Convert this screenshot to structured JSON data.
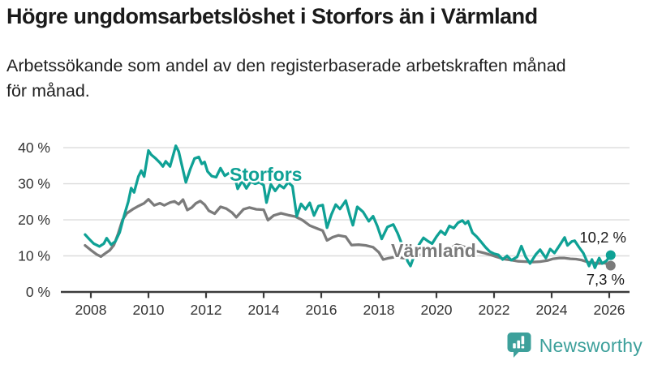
{
  "header": {
    "title": "Högre ungdomsarbetslöshet i Storfors än i Värmland",
    "subtitle_lines": [
      "Arbetssökande som andel av den registerbaserade arbetskraften månad",
      "för månad."
    ]
  },
  "branding": {
    "logo_text": "Newsworthy",
    "logo_color": "#3da09b"
  },
  "chart_data": {
    "type": "line",
    "title": "Högre ungdomsarbetslöshet i Storfors än i Värmland",
    "xlabel": "",
    "ylabel": "Arbetssökande som andel av den registerbaserade arbetskraften",
    "grid": true,
    "xlim": [
      2007.6,
      2026.6
    ],
    "ylim": [
      0,
      44
    ],
    "x_tick_values": [
      2008,
      2010,
      2012,
      2014,
      2016,
      2018,
      2020,
      2022,
      2024,
      2026
    ],
    "x_tick_labels": [
      "2008",
      "2010",
      "2012",
      "2014",
      "2016",
      "2018",
      "2020",
      "2022",
      "2024",
      "2026"
    ],
    "y_tick_values": [
      0,
      10,
      20,
      30,
      40
    ],
    "y_tick_labels": [
      "0 %",
      "10 %",
      "20 %",
      "30 %",
      "40 %"
    ],
    "colors": {
      "storfors": "#0fa195",
      "varmland": "#7b7b7b",
      "axis": "#3b3b3b",
      "gridline": "#dcdcdc",
      "end_label_text": "#1a1a1a"
    },
    "series": [
      {
        "name": "Värmland",
        "color": "#7b7b7b",
        "end_label": "7,3 %",
        "last_value": 7.3,
        "points": [
          [
            2007.8,
            12.9
          ],
          [
            2008.0,
            11.6
          ],
          [
            2008.2,
            10.4
          ],
          [
            2008.35,
            9.8
          ],
          [
            2008.5,
            10.7
          ],
          [
            2008.65,
            11.5
          ],
          [
            2008.8,
            13.0
          ],
          [
            2008.95,
            16.2
          ],
          [
            2009.1,
            20.0
          ],
          [
            2009.25,
            21.8
          ],
          [
            2009.45,
            22.9
          ],
          [
            2009.65,
            23.8
          ],
          [
            2009.85,
            24.6
          ],
          [
            2010.0,
            25.7
          ],
          [
            2010.2,
            24.0
          ],
          [
            2010.4,
            24.6
          ],
          [
            2010.55,
            24.0
          ],
          [
            2010.75,
            24.8
          ],
          [
            2010.9,
            25.1
          ],
          [
            2011.05,
            24.3
          ],
          [
            2011.2,
            25.6
          ],
          [
            2011.35,
            22.7
          ],
          [
            2011.5,
            23.4
          ],
          [
            2011.65,
            24.6
          ],
          [
            2011.8,
            25.2
          ],
          [
            2011.95,
            24.2
          ],
          [
            2012.1,
            22.5
          ],
          [
            2012.3,
            21.7
          ],
          [
            2012.5,
            23.6
          ],
          [
            2012.7,
            23.1
          ],
          [
            2012.9,
            22.0
          ],
          [
            2013.05,
            20.7
          ],
          [
            2013.3,
            22.9
          ],
          [
            2013.5,
            23.4
          ],
          [
            2013.75,
            22.9
          ],
          [
            2014.0,
            22.8
          ],
          [
            2014.15,
            19.9
          ],
          [
            2014.35,
            21.2
          ],
          [
            2014.6,
            21.8
          ],
          [
            2014.85,
            21.3
          ],
          [
            2015.1,
            20.9
          ],
          [
            2015.35,
            19.9
          ],
          [
            2015.6,
            18.4
          ],
          [
            2015.85,
            17.6
          ],
          [
            2016.05,
            17.0
          ],
          [
            2016.2,
            14.3
          ],
          [
            2016.4,
            15.2
          ],
          [
            2016.6,
            15.7
          ],
          [
            2016.85,
            15.3
          ],
          [
            2017.05,
            13.0
          ],
          [
            2017.3,
            13.1
          ],
          [
            2017.55,
            12.9
          ],
          [
            2017.8,
            12.4
          ],
          [
            2018.0,
            11.0
          ],
          [
            2018.15,
            9.0
          ],
          [
            2018.35,
            9.4
          ],
          [
            2018.6,
            9.7
          ],
          [
            2018.85,
            9.4
          ],
          [
            2019.1,
            9.8
          ],
          [
            2019.35,
            10.2
          ],
          [
            2019.6,
            10.4
          ],
          [
            2019.85,
            10.9
          ],
          [
            2020.1,
            11.6
          ],
          [
            2020.35,
            12.2
          ],
          [
            2020.55,
            12.4
          ],
          [
            2020.7,
            13.1
          ],
          [
            2020.85,
            12.8
          ],
          [
            2021.0,
            12.4
          ],
          [
            2021.2,
            11.7
          ],
          [
            2021.45,
            11.2
          ],
          [
            2021.7,
            10.7
          ],
          [
            2021.9,
            10.2
          ],
          [
            2022.1,
            9.7
          ],
          [
            2022.35,
            9.1
          ],
          [
            2022.6,
            8.8
          ],
          [
            2022.85,
            8.5
          ],
          [
            2023.1,
            8.4
          ],
          [
            2023.35,
            8.3
          ],
          [
            2023.6,
            8.4
          ],
          [
            2023.85,
            8.7
          ],
          [
            2024.05,
            9.2
          ],
          [
            2024.25,
            9.4
          ],
          [
            2024.45,
            9.4
          ],
          [
            2024.65,
            9.2
          ],
          [
            2024.85,
            9.1
          ],
          [
            2025.05,
            8.8
          ],
          [
            2025.25,
            8.3
          ],
          [
            2025.45,
            8.1
          ],
          [
            2025.65,
            7.9
          ],
          [
            2025.85,
            8.0
          ],
          [
            2026.05,
            7.3
          ]
        ]
      },
      {
        "name": "Storfors",
        "color": "#0fa195",
        "end_label": "10,2 %",
        "last_value": 10.2,
        "points": [
          [
            2007.8,
            15.9
          ],
          [
            2007.95,
            14.6
          ],
          [
            2008.1,
            13.4
          ],
          [
            2008.3,
            12.6
          ],
          [
            2008.45,
            13.4
          ],
          [
            2008.55,
            14.9
          ],
          [
            2008.7,
            13.1
          ],
          [
            2008.85,
            14.0
          ],
          [
            2009.0,
            16.5
          ],
          [
            2009.15,
            21.0
          ],
          [
            2009.3,
            25.0
          ],
          [
            2009.4,
            28.8
          ],
          [
            2009.5,
            27.6
          ],
          [
            2009.65,
            32.0
          ],
          [
            2009.75,
            33.6
          ],
          [
            2009.85,
            32.0
          ],
          [
            2010.0,
            39.2
          ],
          [
            2010.1,
            38.0
          ],
          [
            2010.25,
            37.0
          ],
          [
            2010.4,
            35.8
          ],
          [
            2010.5,
            34.8
          ],
          [
            2010.6,
            36.2
          ],
          [
            2010.75,
            34.8
          ],
          [
            2010.95,
            40.5
          ],
          [
            2011.05,
            38.9
          ],
          [
            2011.15,
            35.5
          ],
          [
            2011.3,
            30.4
          ],
          [
            2011.45,
            34.0
          ],
          [
            2011.6,
            37.0
          ],
          [
            2011.75,
            37.4
          ],
          [
            2011.85,
            35.5
          ],
          [
            2011.95,
            36.0
          ],
          [
            2012.05,
            33.4
          ],
          [
            2012.2,
            32.1
          ],
          [
            2012.35,
            31.8
          ],
          [
            2012.5,
            34.3
          ],
          [
            2012.65,
            32.2
          ],
          [
            2012.8,
            33.0
          ],
          [
            2012.95,
            33.4
          ],
          [
            2013.1,
            28.6
          ],
          [
            2013.25,
            30.8
          ],
          [
            2013.4,
            28.7
          ],
          [
            2013.55,
            30.6
          ],
          [
            2013.7,
            30.0
          ],
          [
            2013.85,
            30.4
          ],
          [
            2014.0,
            29.6
          ],
          [
            2014.1,
            24.8
          ],
          [
            2014.25,
            29.8
          ],
          [
            2014.4,
            28.0
          ],
          [
            2014.55,
            29.6
          ],
          [
            2014.7,
            28.8
          ],
          [
            2014.85,
            30.4
          ],
          [
            2015.0,
            29.3
          ],
          [
            2015.15,
            21.0
          ],
          [
            2015.3,
            24.4
          ],
          [
            2015.45,
            22.9
          ],
          [
            2015.6,
            24.7
          ],
          [
            2015.75,
            21.2
          ],
          [
            2015.9,
            23.8
          ],
          [
            2016.05,
            24.1
          ],
          [
            2016.2,
            17.8
          ],
          [
            2016.35,
            21.4
          ],
          [
            2016.5,
            24.2
          ],
          [
            2016.65,
            23.0
          ],
          [
            2016.85,
            25.3
          ],
          [
            2017.0,
            21.0
          ],
          [
            2017.1,
            18.5
          ],
          [
            2017.25,
            23.6
          ],
          [
            2017.45,
            22.2
          ],
          [
            2017.65,
            19.6
          ],
          [
            2017.8,
            21.0
          ],
          [
            2017.95,
            18.2
          ],
          [
            2018.1,
            14.7
          ],
          [
            2018.3,
            18.0
          ],
          [
            2018.5,
            18.7
          ],
          [
            2018.65,
            16.3
          ],
          [
            2018.85,
            12.2
          ],
          [
            2019.0,
            8.5
          ],
          [
            2019.1,
            7.2
          ],
          [
            2019.25,
            10.6
          ],
          [
            2019.4,
            13.2
          ],
          [
            2019.55,
            15.0
          ],
          [
            2019.7,
            14.1
          ],
          [
            2019.85,
            13.4
          ],
          [
            2020.0,
            15.3
          ],
          [
            2020.15,
            16.9
          ],
          [
            2020.3,
            15.9
          ],
          [
            2020.45,
            18.3
          ],
          [
            2020.6,
            17.7
          ],
          [
            2020.75,
            19.2
          ],
          [
            2020.9,
            19.8
          ],
          [
            2021.0,
            18.9
          ],
          [
            2021.1,
            19.6
          ],
          [
            2021.25,
            16.4
          ],
          [
            2021.4,
            15.3
          ],
          [
            2021.55,
            13.9
          ],
          [
            2021.7,
            12.4
          ],
          [
            2021.85,
            11.2
          ],
          [
            2022.0,
            10.6
          ],
          [
            2022.15,
            10.3
          ],
          [
            2022.3,
            9.0
          ],
          [
            2022.45,
            10.0
          ],
          [
            2022.6,
            8.8
          ],
          [
            2022.8,
            9.7
          ],
          [
            2022.95,
            12.7
          ],
          [
            2023.1,
            9.7
          ],
          [
            2023.25,
            7.9
          ],
          [
            2023.45,
            10.4
          ],
          [
            2023.6,
            11.7
          ],
          [
            2023.8,
            9.4
          ],
          [
            2023.95,
            11.9
          ],
          [
            2024.1,
            10.8
          ],
          [
            2024.3,
            13.2
          ],
          [
            2024.45,
            15.1
          ],
          [
            2024.55,
            12.9
          ],
          [
            2024.7,
            14.0
          ],
          [
            2024.8,
            14.2
          ],
          [
            2024.95,
            12.4
          ],
          [
            2025.1,
            10.8
          ],
          [
            2025.2,
            9.0
          ],
          [
            2025.3,
            7.2
          ],
          [
            2025.4,
            9.0
          ],
          [
            2025.5,
            6.7
          ],
          [
            2025.65,
            9.4
          ],
          [
            2025.75,
            7.9
          ],
          [
            2025.9,
            8.6
          ],
          [
            2026.05,
            10.2
          ]
        ]
      }
    ],
    "legend_position": "inline-labels"
  }
}
